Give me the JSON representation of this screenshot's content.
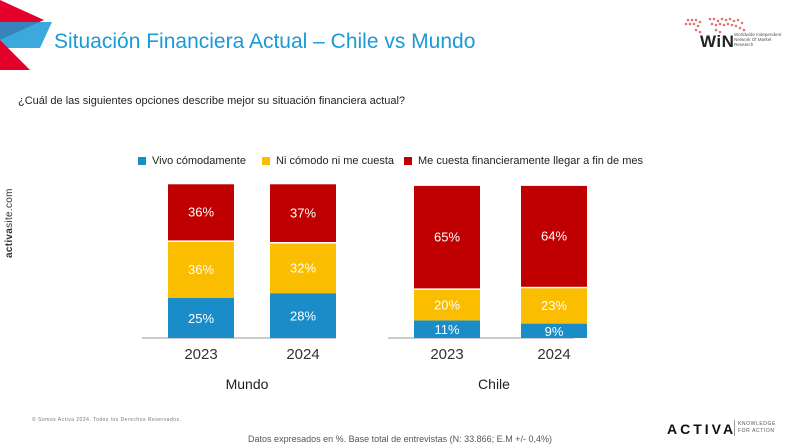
{
  "header": {
    "title": "Situación Financiera Actual – Chile vs Mundo",
    "win_logo_text": "WiN",
    "win_logo_sub": "Worldwide Independent Network Of Market Research"
  },
  "question": "¿Cuál de las siguientes opciones describe mejor su situación financiera actual?",
  "side_brand": {
    "bold": "activa",
    "rest": "site.com"
  },
  "colors": {
    "vivo": "#1a8dc9",
    "ni": "#fbbd00",
    "cuesta": "#c00000",
    "title": "#1a9ad6"
  },
  "chart_data": {
    "type": "bar",
    "stacked": true,
    "legend": [
      "Vivo cómodamente",
      "Ni cómodo ni me cuesta",
      "Me cuesta financieramente llegar a fin de mes"
    ],
    "legend_placement": "top",
    "grid": false,
    "panels": [
      {
        "group": "Mundo",
        "categories": [
          "2023",
          "2024"
        ],
        "series": [
          {
            "name": "Vivo cómodamente",
            "values": [
              25,
              28
            ],
            "labels": [
              "25%",
              "28%"
            ]
          },
          {
            "name": "Ni cómodo ni me cuesta",
            "values": [
              36,
              32
            ],
            "labels": [
              "36%",
              "32%"
            ]
          },
          {
            "name": "Me cuesta financieramente llegar a fin de mes",
            "values": [
              36,
              37
            ],
            "labels": [
              "36%",
              "37%"
            ]
          }
        ]
      },
      {
        "group": "Chile",
        "categories": [
          "2023",
          "2024"
        ],
        "series": [
          {
            "name": "Vivo cómodamente",
            "values": [
              11,
              9
            ],
            "labels": [
              "11%",
              "9%"
            ]
          },
          {
            "name": "Ni cómodo ni me cuesta",
            "values": [
              20,
              23
            ],
            "labels": [
              "20%",
              "23%"
            ]
          },
          {
            "name": "Me cuesta financieramente llegar a fin de mes",
            "values": [
              65,
              64
            ],
            "labels": [
              "65%",
              "64%"
            ]
          }
        ]
      }
    ]
  },
  "footer": {
    "copyright": "© Somos Activa 2024. Todos los Derechos Reservados.",
    "note": "Datos expresados en %. Base total de entrevistas (N: 33.866; E.M +/- 0,4%)",
    "brand": "ACTIVA",
    "tagline_1": "KNOWLEDGE",
    "tagline_2": "FOR ACTION"
  }
}
